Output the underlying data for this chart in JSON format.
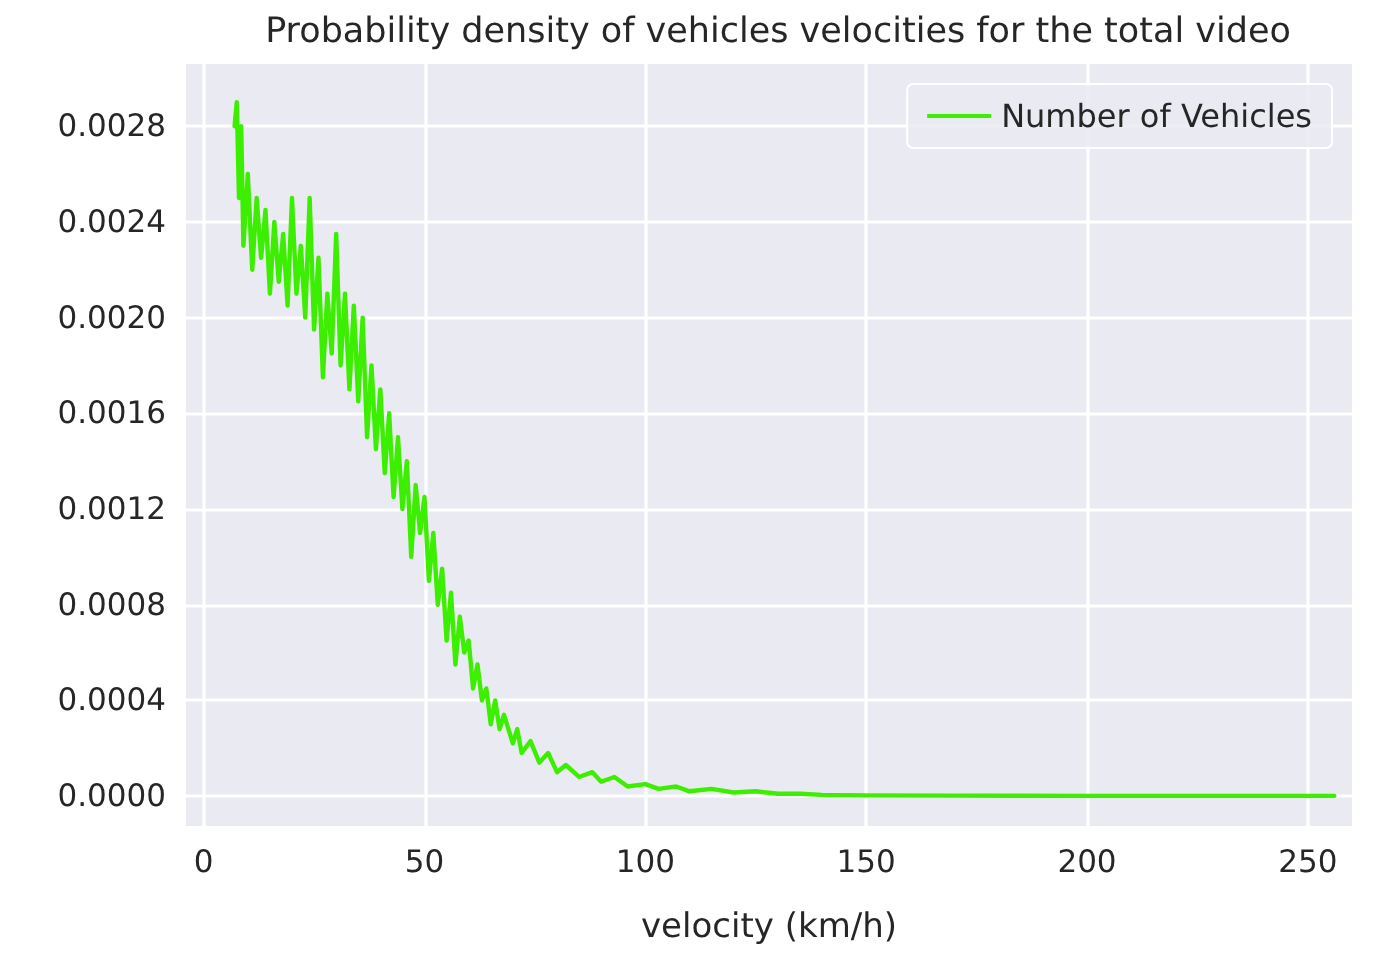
{
  "chart_data": {
    "type": "line",
    "title": "Probability density of vehicles velocities for the total video",
    "xlabel": "velocity (km/h)",
    "x": [
      7,
      7.5,
      8,
      8.5,
      9,
      10,
      11,
      12,
      13,
      14,
      15,
      16,
      17,
      18,
      19,
      20,
      21,
      22,
      23,
      24,
      25,
      26,
      27,
      28,
      29,
      30,
      31,
      32,
      33,
      34,
      35,
      36,
      37,
      38,
      39,
      40,
      41,
      42,
      43,
      44,
      45,
      46,
      47,
      48,
      49,
      50,
      51,
      52,
      53,
      54,
      55,
      56,
      57,
      58,
      59,
      60,
      61,
      62,
      63,
      64,
      65,
      66,
      67,
      68,
      70,
      71,
      72,
      74,
      76,
      78,
      80,
      82,
      85,
      88,
      90,
      93,
      96,
      100,
      103,
      107,
      110,
      115,
      120,
      125,
      130,
      135,
      140,
      150,
      170,
      200,
      230,
      256
    ],
    "series": [
      {
        "name": "Number of Vehicles",
        "color": "#3cee00",
        "values": [
          0.0028,
          0.0029,
          0.0025,
          0.0028,
          0.0023,
          0.0026,
          0.0022,
          0.0025,
          0.00225,
          0.00245,
          0.0021,
          0.0024,
          0.00215,
          0.00235,
          0.00205,
          0.0025,
          0.0021,
          0.0023,
          0.002,
          0.0025,
          0.00195,
          0.00225,
          0.00175,
          0.0021,
          0.00185,
          0.00235,
          0.0018,
          0.0021,
          0.0017,
          0.00205,
          0.00165,
          0.002,
          0.0015,
          0.0018,
          0.00145,
          0.0017,
          0.00135,
          0.0016,
          0.00125,
          0.0015,
          0.0012,
          0.0014,
          0.001,
          0.0013,
          0.0011,
          0.00125,
          0.0009,
          0.0011,
          0.0008,
          0.00095,
          0.00065,
          0.00085,
          0.00055,
          0.00075,
          0.0006,
          0.00065,
          0.00045,
          0.00055,
          0.0004,
          0.00045,
          0.0003,
          0.0004,
          0.00028,
          0.00034,
          0.00022,
          0.00028,
          0.00018,
          0.00023,
          0.00014,
          0.00018,
          0.0001,
          0.00013,
          8e-05,
          0.0001,
          6e-05,
          8e-05,
          4e-05,
          5e-05,
          3e-05,
          4e-05,
          2e-05,
          3e-05,
          1.5e-05,
          2e-05,
          1e-05,
          1e-05,
          5e-06,
          3e-06,
          2e-06,
          1e-06,
          1e-06,
          1e-06
        ]
      }
    ],
    "xlim": [
      -4,
      260
    ],
    "xticks": [
      0,
      50,
      100,
      150,
      200,
      250
    ],
    "ylim": [
      -0.000125,
      0.00306
    ],
    "yticks": [
      {
        "value": 0,
        "label": "0.0000"
      },
      {
        "value": 0.0004,
        "label": "0.0004"
      },
      {
        "value": 0.0008,
        "label": "0.0008"
      },
      {
        "value": 0.0012,
        "label": "0.0012"
      },
      {
        "value": 0.0016,
        "label": "0.0016"
      },
      {
        "value": 0.002,
        "label": "0.0020"
      },
      {
        "value": 0.0024,
        "label": "0.0024"
      },
      {
        "value": 0.0028,
        "label": "0.0028"
      }
    ],
    "grid": true,
    "legend": "top right",
    "marker": "none",
    "line_style": "solid"
  }
}
